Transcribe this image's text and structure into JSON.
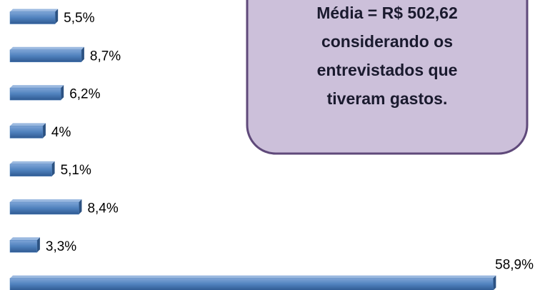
{
  "chart_data": {
    "type": "bar",
    "orientation": "horizontal",
    "categories": [
      null,
      null,
      null,
      null,
      null,
      null,
      null,
      null
    ],
    "values": [
      5.5,
      8.7,
      6.2,
      4,
      5.1,
      8.4,
      3.3,
      58.9
    ],
    "value_labels": [
      "5,5%",
      "8,7%",
      "6,2%",
      "4%",
      "5,1%",
      "8,4%",
      "3,3%",
      "58,9%"
    ],
    "color": "#4f81bd",
    "xlim": [
      0,
      60
    ],
    "annotation": {
      "lines": [
        "Média = R$ 502,62",
        "considerando  os",
        "entrevistados que",
        "tiveram gastos."
      ],
      "fill": "#ccc0da",
      "border": "#5f497a"
    }
  }
}
